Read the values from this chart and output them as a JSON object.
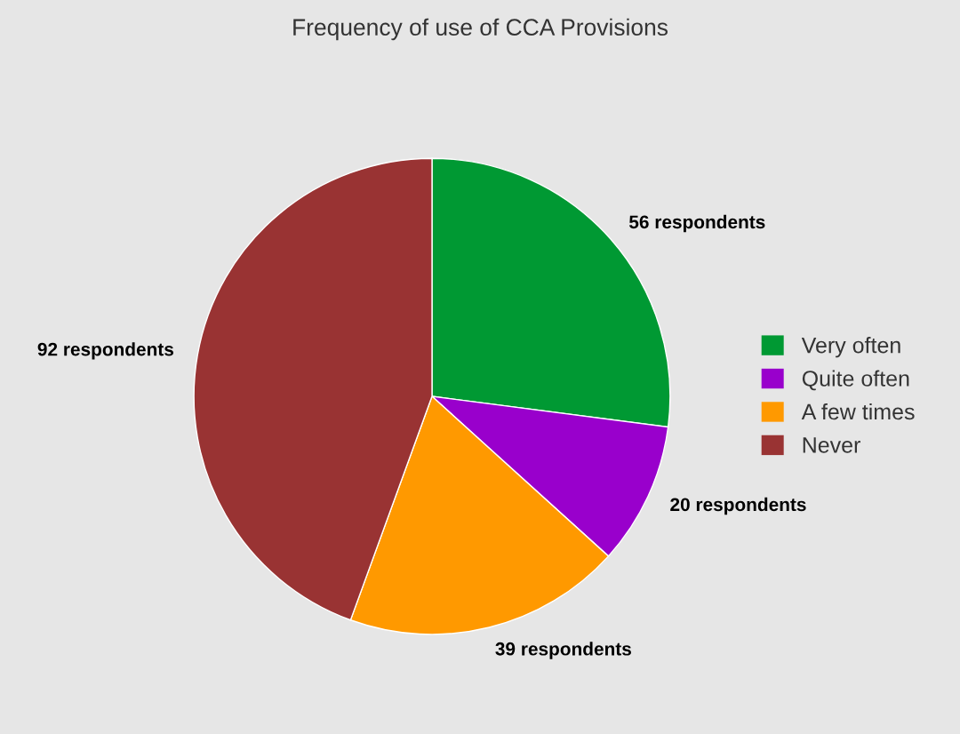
{
  "chart_data": {
    "type": "pie",
    "title": "Frequency of use of CCA Provisions",
    "categories": [
      "Very often",
      "Quite often",
      "A few times",
      "Never"
    ],
    "values": [
      56,
      20,
      39,
      92
    ],
    "colors": [
      "#009933",
      "#9900cc",
      "#ff9900",
      "#993333"
    ],
    "value_labels": [
      "56 respondents",
      "20 respondents",
      "39 respondents",
      "92 respondents"
    ],
    "legend": "right"
  }
}
